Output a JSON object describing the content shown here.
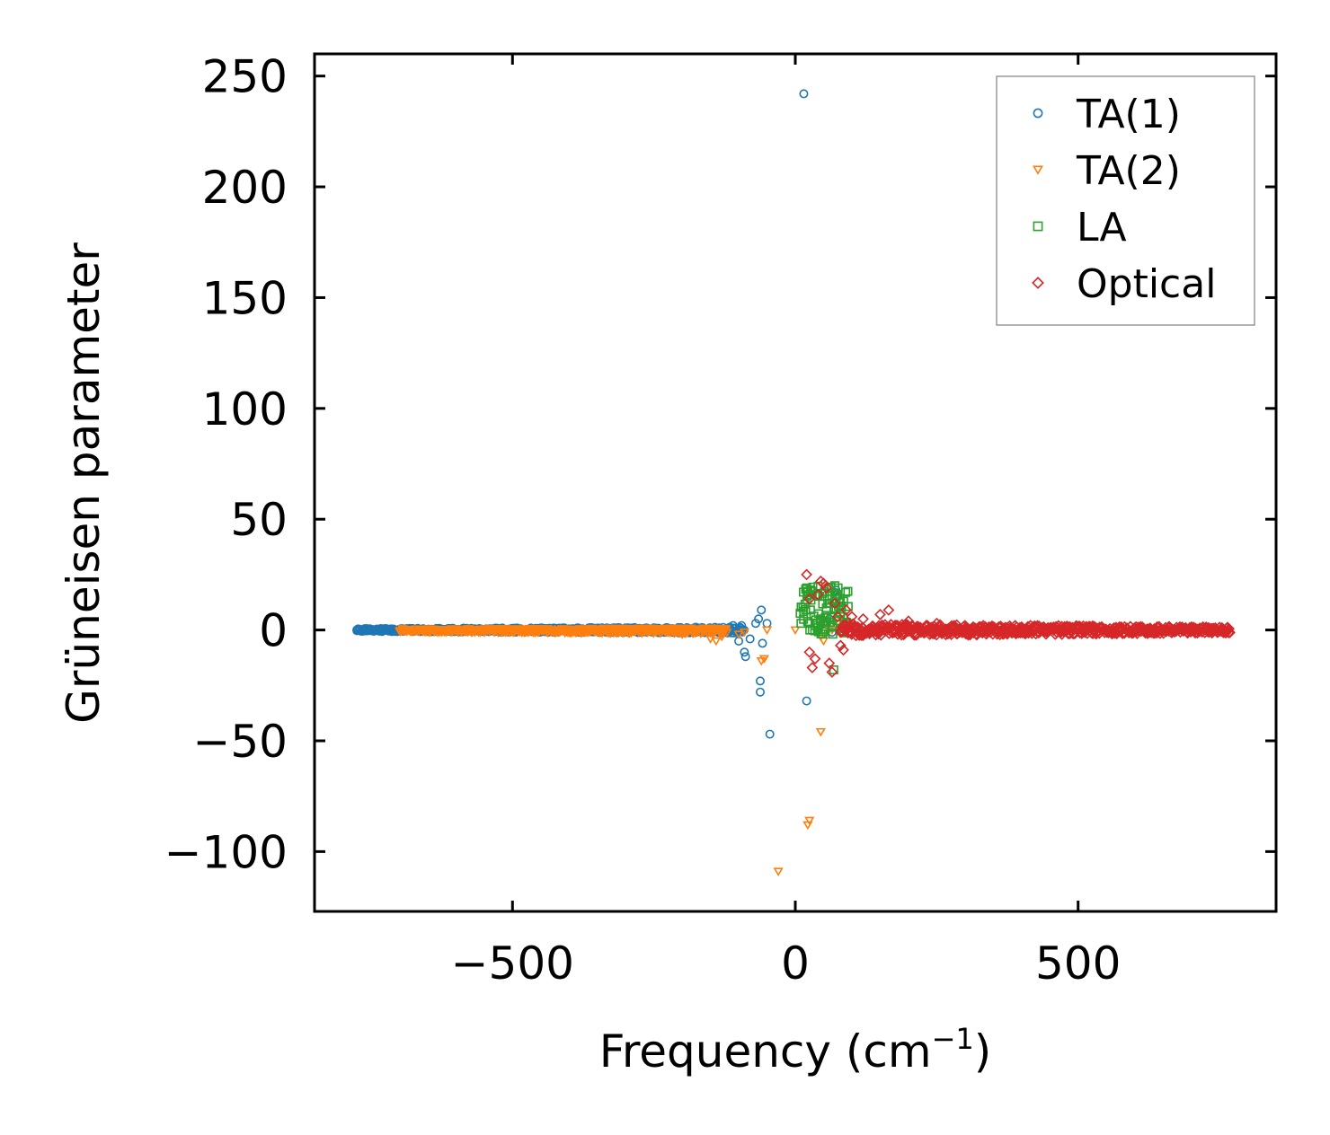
{
  "chart_data": {
    "type": "scatter",
    "title": "",
    "xlabel": "Frequency (cm",
    "xlabel_sup": "−1",
    "xlabel_close": ")",
    "ylabel": "Grüneisen parameter",
    "xlim": [
      -850,
      850
    ],
    "ylim": [
      -127,
      260
    ],
    "xticks": [
      -500,
      0,
      500
    ],
    "xtick_labels": [
      "−500",
      "0",
      "500"
    ],
    "yticks": [
      -100,
      -50,
      0,
      50,
      100,
      150,
      200,
      250
    ],
    "ytick_labels": [
      "−100",
      "−50",
      "0",
      "50",
      "100",
      "150",
      "200",
      "250"
    ],
    "grid": false,
    "legend_position": "top-right",
    "series": [
      {
        "name": "TA(1)",
        "marker": "circle",
        "color": "#1f77b4",
        "band": {
          "x_from": -775,
          "x_to": -90,
          "y_min": -1.5,
          "y_max": 1.5
        },
        "points": [
          [
            -775,
            0
          ],
          [
            -735,
            0
          ],
          [
            -690,
            0
          ],
          [
            -660,
            0
          ],
          [
            -600,
            0
          ],
          [
            -550,
            0
          ],
          [
            -500,
            0
          ],
          [
            -450,
            0
          ],
          [
            -400,
            0
          ],
          [
            -350,
            0
          ],
          [
            -300,
            0
          ],
          [
            -250,
            1
          ],
          [
            -200,
            0
          ],
          [
            -150,
            0
          ],
          [
            -110,
            2
          ],
          [
            -100,
            -5
          ],
          [
            -95,
            2
          ],
          [
            -90,
            -10
          ],
          [
            -88,
            -12
          ],
          [
            -80,
            -4
          ],
          [
            -70,
            3
          ],
          [
            -65,
            5
          ],
          [
            -60,
            9
          ],
          [
            -58,
            -6
          ],
          [
            -50,
            3
          ],
          [
            -62,
            -23
          ],
          [
            -62,
            -28
          ],
          [
            -45,
            -47
          ],
          [
            15,
            242
          ],
          [
            20,
            -32
          ],
          [
            50,
            3
          ],
          [
            60,
            5
          ],
          [
            65,
            -1
          ],
          [
            70,
            17
          ],
          [
            72,
            18
          ],
          [
            75,
            15
          ]
        ]
      },
      {
        "name": "TA(2)",
        "marker": "triangle-down",
        "color": "#ff7f0e",
        "band": {
          "x_from": -700,
          "x_to": -120,
          "y_min": -2,
          "y_max": 1
        },
        "points": [
          [
            -600,
            0
          ],
          [
            -500,
            -1
          ],
          [
            -400,
            0
          ],
          [
            -300,
            0
          ],
          [
            -200,
            -2
          ],
          [
            -150,
            -4
          ],
          [
            -140,
            -5
          ],
          [
            -130,
            -3
          ],
          [
            -100,
            -2
          ],
          [
            -90,
            -1
          ],
          [
            -60,
            -14
          ],
          [
            -55,
            -13
          ],
          [
            -50,
            0
          ],
          [
            -30,
            -109
          ],
          [
            0,
            0
          ],
          [
            25,
            -86
          ],
          [
            22,
            -88
          ],
          [
            45,
            -46
          ],
          [
            45,
            -3
          ],
          [
            50,
            -5
          ],
          [
            55,
            2
          ],
          [
            65,
            0
          ],
          [
            75,
            3
          ],
          [
            80,
            5
          ]
        ]
      },
      {
        "name": "LA",
        "marker": "square",
        "color": "#2ca02c",
        "band": {
          "x_from": 10,
          "x_to": 95,
          "y_min": -2,
          "y_max": 20
        },
        "points": [
          [
            10,
            3
          ],
          [
            20,
            19
          ],
          [
            25,
            3
          ],
          [
            30,
            0
          ],
          [
            35,
            2
          ],
          [
            40,
            1
          ],
          [
            45,
            5
          ],
          [
            50,
            4
          ],
          [
            55,
            10
          ],
          [
            60,
            12
          ],
          [
            65,
            14
          ],
          [
            68,
            -18
          ],
          [
            70,
            20
          ],
          [
            75,
            16
          ],
          [
            80,
            8
          ],
          [
            85,
            6
          ],
          [
            90,
            2
          ]
        ]
      },
      {
        "name": "Optical",
        "marker": "diamond",
        "color": "#d62728",
        "band": {
          "x_from": 80,
          "x_to": 770,
          "y_min": -3,
          "y_max": 3
        },
        "points": [
          [
            20,
            25
          ],
          [
            25,
            14
          ],
          [
            25,
            -10
          ],
          [
            30,
            -17
          ],
          [
            35,
            -13
          ],
          [
            40,
            16
          ],
          [
            45,
            22
          ],
          [
            50,
            21
          ],
          [
            55,
            19
          ],
          [
            60,
            -15
          ],
          [
            65,
            -19
          ],
          [
            70,
            12
          ],
          [
            75,
            6
          ],
          [
            80,
            -7
          ],
          [
            85,
            -9
          ],
          [
            90,
            9
          ],
          [
            100,
            6
          ],
          [
            120,
            5
          ],
          [
            150,
            7
          ],
          [
            165,
            9
          ],
          [
            200,
            4
          ],
          [
            250,
            3
          ],
          [
            300,
            2
          ],
          [
            400,
            1
          ],
          [
            500,
            1
          ],
          [
            600,
            1
          ],
          [
            700,
            1
          ],
          [
            765,
            0
          ]
        ]
      }
    ]
  }
}
